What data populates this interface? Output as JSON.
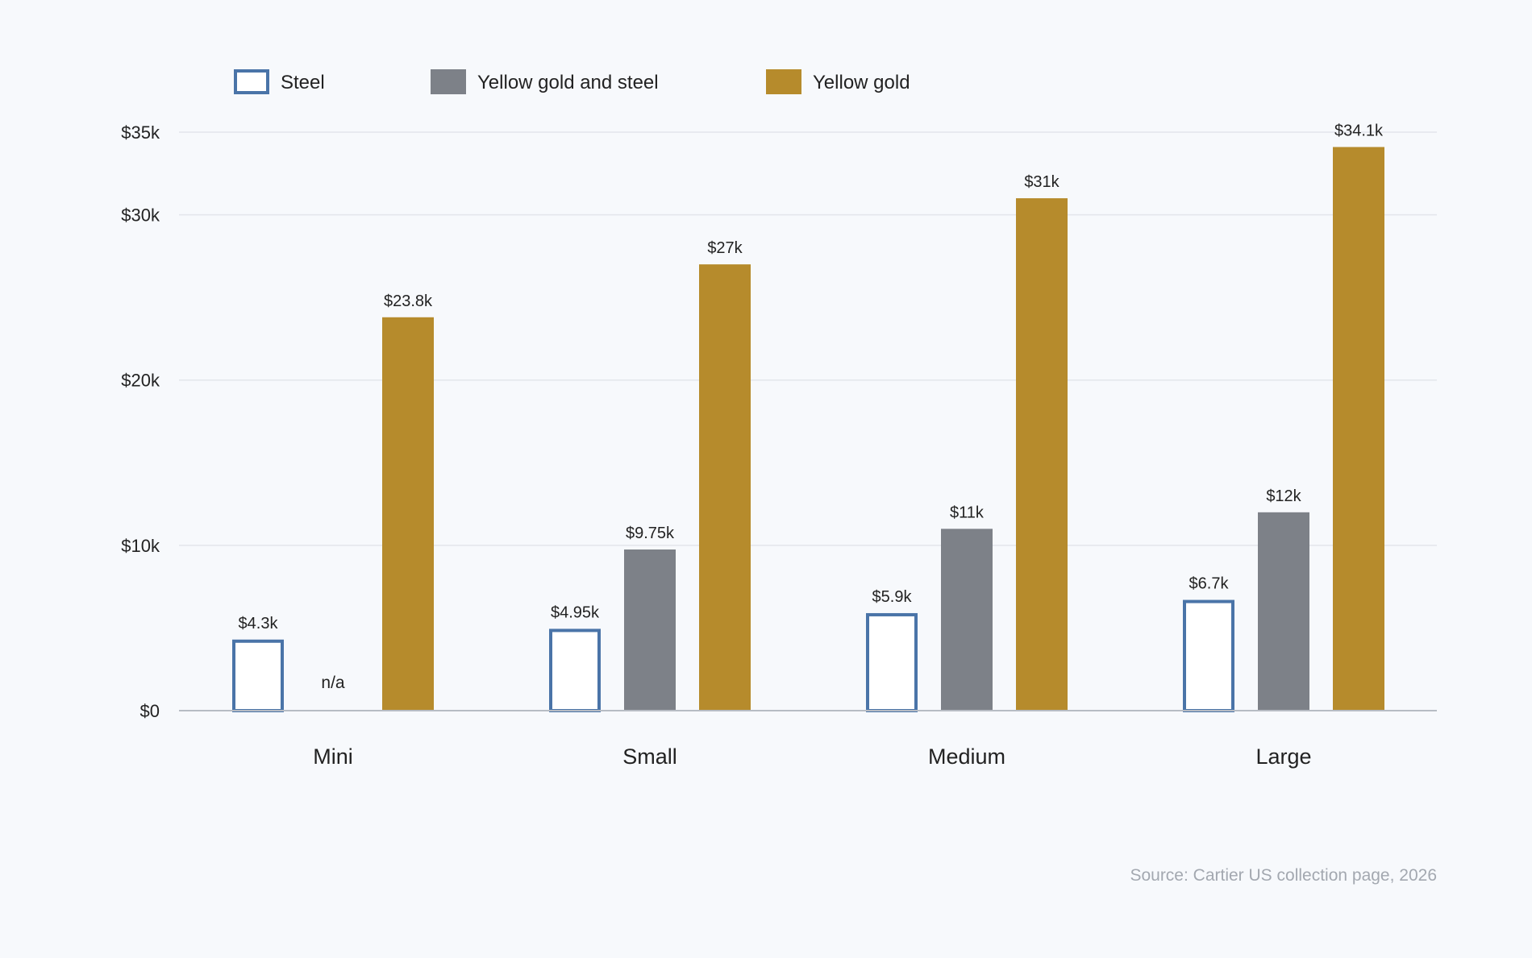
{
  "chart_data": {
    "type": "bar",
    "categories": [
      "Mini",
      "Small",
      "Medium",
      "Large"
    ],
    "series": [
      {
        "name": "Steel",
        "values": [
          4300,
          4950,
          5900,
          6700
        ],
        "labels": [
          "$4.3k",
          "$4.95k",
          "$5.9k",
          "$6.7k"
        ],
        "style": "outline",
        "color": "#4a74a8"
      },
      {
        "name": "Yellow gold and steel",
        "values": [
          null,
          9750,
          11000,
          12000
        ],
        "labels": [
          "n/a",
          "$9.75k",
          "$11k",
          "$12k"
        ],
        "style": "filled",
        "color": "#7d8188"
      },
      {
        "name": "Yellow gold",
        "values": [
          23800,
          27000,
          31000,
          34100
        ],
        "labels": [
          "$23.8k",
          "$27k",
          "$31k",
          "$34.1k"
        ],
        "style": "filled",
        "color": "#b68b2c"
      }
    ],
    "y_ticks": [
      0,
      10000,
      20000,
      30000,
      35000
    ],
    "y_tick_labels": [
      "$0",
      "$10k",
      "$20k",
      "$30k",
      "$35k"
    ],
    "ylim": [
      0,
      35000
    ],
    "grid": true,
    "legend_position": "top-left",
    "xlabel": "",
    "ylabel": "",
    "title": "",
    "source": "Source: Cartier US collection page, 2026"
  }
}
